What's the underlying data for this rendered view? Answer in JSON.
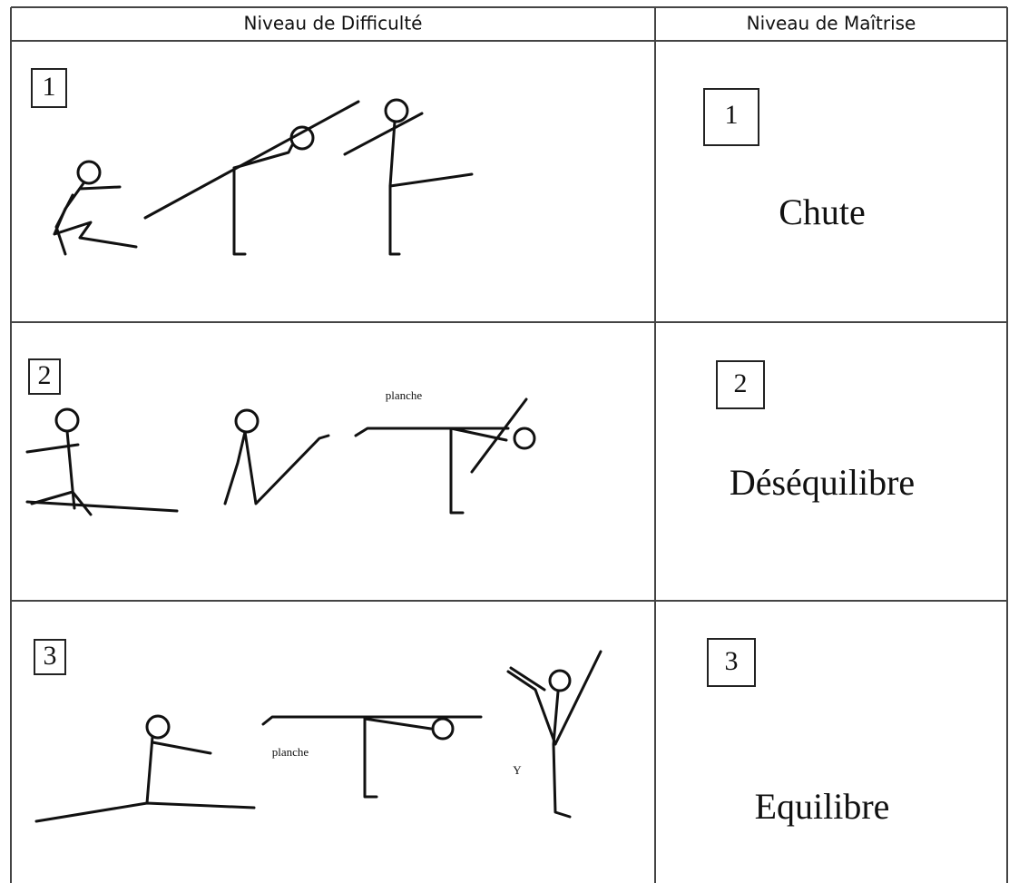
{
  "table": {
    "header": [
      "Niveau de Difficulté",
      "Niveau de Maîtrise"
    ],
    "rows": [
      {
        "difficulty": "1",
        "mastery": "1",
        "mastery_label": "Chute"
      },
      {
        "difficulty": "2",
        "labels": [
          "planche"
        ],
        "mastery": "2",
        "mastery_label": "Déséquilibre"
      },
      {
        "difficulty": "3",
        "labels": [
          "planche",
          "Y"
        ],
        "mastery": "3",
        "mastery_label": "Equilibre"
      }
    ]
  }
}
